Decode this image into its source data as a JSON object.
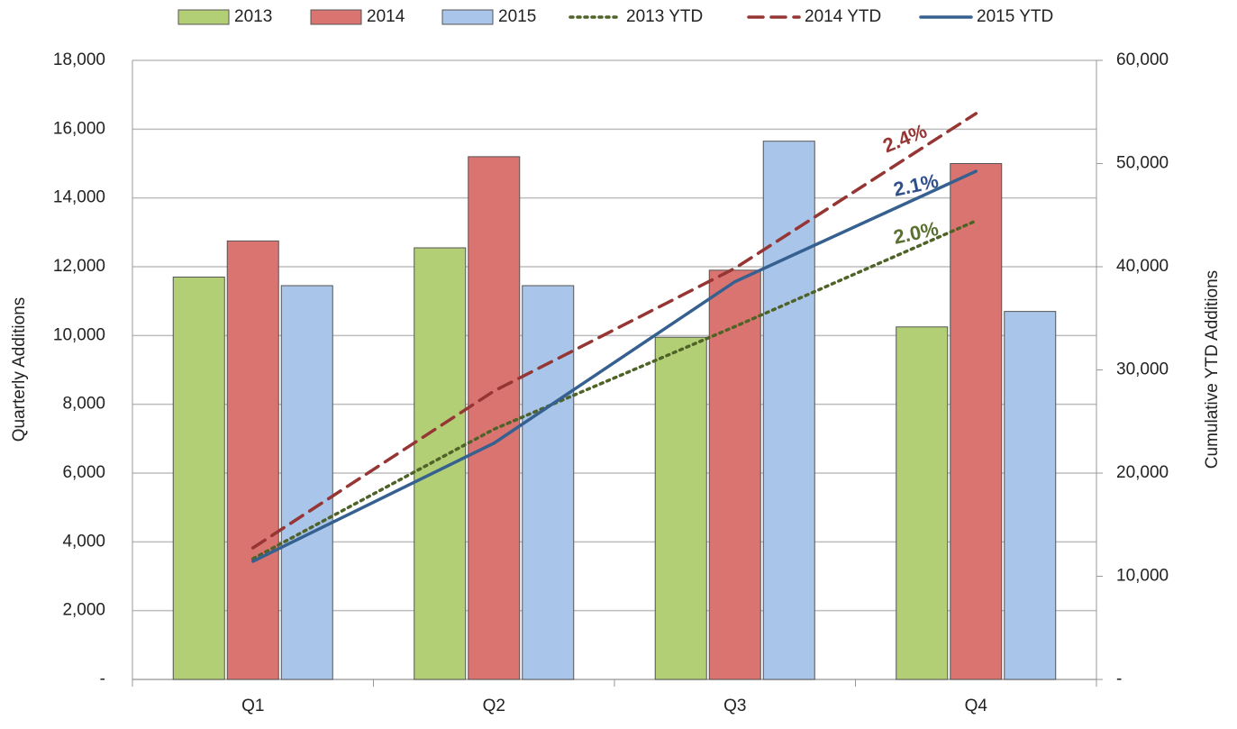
{
  "chart_data": {
    "type": "bar",
    "categories": [
      "Q1",
      "Q2",
      "Q3",
      "Q4"
    ],
    "ylabel": "Quarterly Additions",
    "y2label": "Cumulative YTD Additions",
    "ylim": [
      0,
      18000
    ],
    "yticks": [
      {
        "value": 0,
        "label": "-"
      },
      {
        "value": 2000,
        "label": "2,000"
      },
      {
        "value": 4000,
        "label": "4,000"
      },
      {
        "value": 6000,
        "label": "6,000"
      },
      {
        "value": 8000,
        "label": "8,000"
      },
      {
        "value": 10000,
        "label": "10,000"
      },
      {
        "value": 12000,
        "label": "12,000"
      },
      {
        "value": 14000,
        "label": "14,000"
      },
      {
        "value": 16000,
        "label": "16,000"
      },
      {
        "value": 18000,
        "label": "18,000"
      }
    ],
    "y2lim": [
      0,
      60000
    ],
    "y2ticks": [
      {
        "value": 0,
        "label": "-"
      },
      {
        "value": 10000,
        "label": "10,000"
      },
      {
        "value": 20000,
        "label": "20,000"
      },
      {
        "value": 30000,
        "label": "30,000"
      },
      {
        "value": 40000,
        "label": "40,000"
      },
      {
        "value": 50000,
        "label": "50,000"
      },
      {
        "value": 60000,
        "label": "60,000"
      }
    ],
    "grid": true,
    "legend": "top",
    "series": [
      {
        "name": "2013",
        "kind": "bar",
        "color": "#b3cf76",
        "values": [
          11700,
          12550,
          9950,
          10250
        ]
      },
      {
        "name": "2014",
        "kind": "bar",
        "color": "#d97470",
        "values": [
          12750,
          15200,
          11900,
          15000
        ]
      },
      {
        "name": "2015",
        "kind": "bar",
        "color": "#a9c5ea",
        "values": [
          11450,
          11450,
          15650,
          10700
        ]
      },
      {
        "name": "2013 YTD",
        "kind": "line",
        "axis": "y2",
        "dash": "dotted",
        "color": "#4f6228",
        "values": [
          11700,
          24250,
          34200,
          44450
        ]
      },
      {
        "name": "2014 YTD",
        "kind": "line",
        "axis": "y2",
        "dash": "dashed",
        "color": "#963634",
        "values": [
          12750,
          27950,
          39850,
          54850
        ]
      },
      {
        "name": "2015 YTD",
        "kind": "line",
        "axis": "y2",
        "dash": "solid",
        "color": "#35608f",
        "values": [
          11450,
          22900,
          38550,
          49250
        ]
      }
    ],
    "annotations": [
      {
        "text": "2.4%",
        "color": "#963634"
      },
      {
        "text": "2.1%",
        "color": "#2f4f8a"
      },
      {
        "text": "2.0%",
        "color": "#5a7030"
      }
    ]
  }
}
